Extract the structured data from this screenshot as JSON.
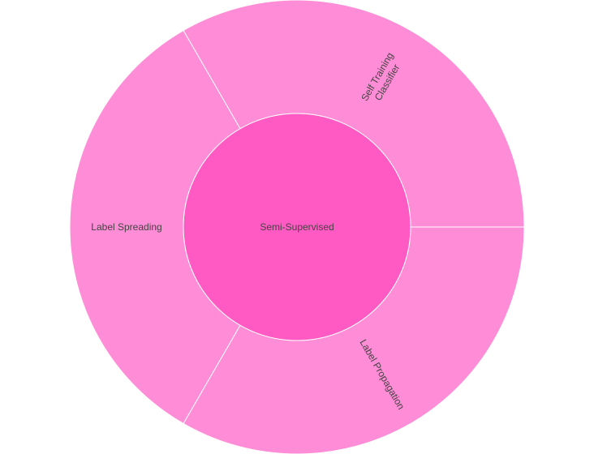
{
  "chart_data": {
    "type": "sunburst",
    "root": {
      "label": "Semi-Supervised",
      "value": 3,
      "color": "#ff5ac3"
    },
    "children": [
      {
        "label": "Self Training Classifier",
        "label_lines": [
          "Self Training",
          "Classifier"
        ],
        "value": 1,
        "color": "#ff8cd6"
      },
      {
        "label": "Label Propagation",
        "label_lines": [
          "Label Propagation"
        ],
        "value": 1,
        "color": "#ff8cd6"
      },
      {
        "label": "Label Spreading",
        "label_lines": [
          "Label Spreading"
        ],
        "value": 1,
        "color": "#ff8cd6"
      }
    ],
    "border_color": "#ffffff"
  }
}
